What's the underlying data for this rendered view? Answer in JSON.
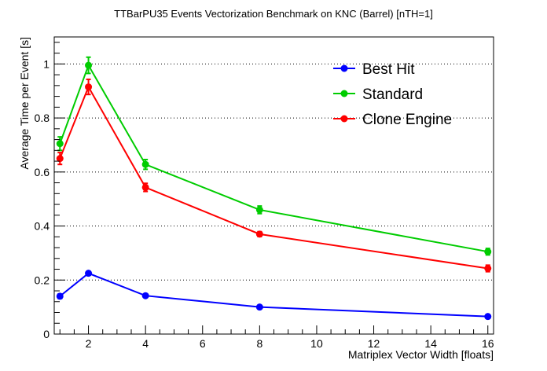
{
  "chart_data": {
    "type": "line",
    "title": "TTBarPU35 Events Vectorization Benchmark on KNC (Barrel) [nTH=1]",
    "xlabel": "Matriplex Vector Width [floats]",
    "ylabel": "Average Time per Event [s]",
    "xlim": [
      0.8,
      16.2
    ],
    "ylim": [
      0,
      1.1
    ],
    "x_ticks": [
      2,
      4,
      6,
      8,
      10,
      12,
      14,
      16
    ],
    "y_ticks": [
      0,
      0.2,
      0.4,
      0.6,
      0.8,
      1
    ],
    "grid": "horizontal-dotted",
    "legend_position": "top-right",
    "series": [
      {
        "name": "Best Hit",
        "color": "#0000ff",
        "x": [
          1,
          2,
          4,
          8,
          16
        ],
        "y": [
          0.14,
          0.225,
          0.142,
          0.1,
          0.065
        ],
        "err": [
          0.008,
          0.006,
          0.005,
          0.004,
          0.003
        ]
      },
      {
        "name": "Standard",
        "color": "#00cc00",
        "x": [
          1,
          2,
          4,
          8,
          16
        ],
        "y": [
          0.705,
          0.995,
          0.628,
          0.46,
          0.305
        ],
        "err": [
          0.025,
          0.03,
          0.018,
          0.014,
          0.012
        ]
      },
      {
        "name": "Clone Engine",
        "color": "#ff0000",
        "x": [
          1,
          2,
          4,
          8,
          16
        ],
        "y": [
          0.65,
          0.915,
          0.543,
          0.37,
          0.243
        ],
        "err": [
          0.022,
          0.028,
          0.015,
          0.009,
          0.012
        ]
      }
    ]
  }
}
